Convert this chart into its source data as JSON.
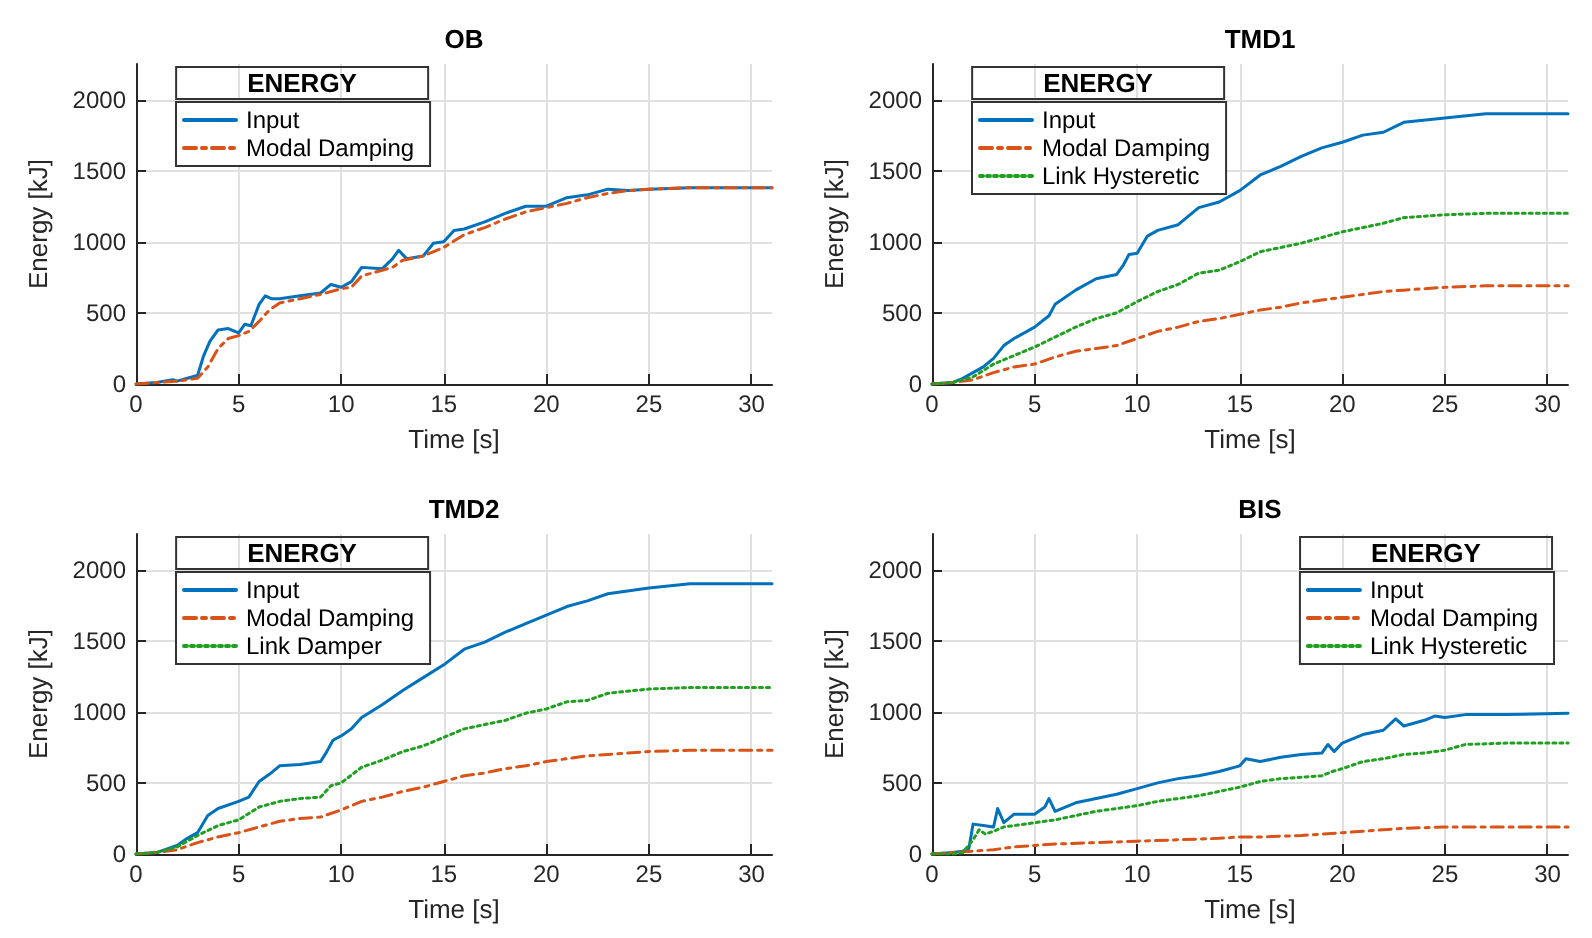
{
  "chart_data": [
    {
      "type": "line",
      "title": "OB",
      "xlabel": "Time [s]",
      "ylabel": "Energy [kJ]",
      "legend_title": "ENERGY",
      "legend": "top left",
      "grid": true,
      "marker": "none",
      "xlim": [
        0,
        31
      ],
      "xticks": [
        0,
        5,
        10,
        15,
        20,
        25,
        30
      ],
      "ylim": [
        0,
        2250
      ],
      "yticks": [
        0,
        500,
        1000,
        1500,
        2000
      ],
      "series": [
        {
          "name": "Input",
          "color": "#0072bd",
          "line_style": "solid",
          "x": [
            0,
            1,
            1.8,
            2,
            2.5,
            3,
            3.3,
            3.6,
            4,
            4.5,
            5,
            5.3,
            5.6,
            6,
            6.3,
            6.6,
            7,
            8,
            9,
            9.5,
            10,
            10.5,
            11,
            12,
            12.5,
            12.8,
            13.2,
            14,
            14.5,
            15,
            15.5,
            16,
            17,
            18,
            19,
            20,
            21,
            22,
            23,
            24,
            25,
            27,
            31
          ],
          "values": [
            0,
            10,
            30,
            20,
            40,
            60,
            200,
            300,
            380,
            390,
            360,
            420,
            410,
            560,
            620,
            600,
            600,
            620,
            640,
            700,
            680,
            720,
            820,
            810,
            880,
            940,
            880,
            900,
            990,
            1000,
            1080,
            1090,
            1140,
            1200,
            1250,
            1250,
            1310,
            1330,
            1370,
            1360,
            1370,
            1380,
            1380
          ]
        },
        {
          "name": "Modal Damping",
          "color": "#d95319",
          "line_style": "dashed",
          "x": [
            0,
            1,
            2,
            3,
            3.5,
            4,
            4.5,
            5,
            5.5,
            6,
            6.5,
            7,
            8,
            9,
            10,
            10.5,
            11,
            12,
            12.5,
            13,
            14,
            15,
            16,
            17,
            18,
            19,
            20,
            21,
            22,
            23,
            24,
            25,
            27,
            31
          ],
          "values": [
            0,
            10,
            20,
            40,
            120,
            250,
            320,
            340,
            370,
            440,
            520,
            570,
            600,
            630,
            670,
            680,
            760,
            800,
            820,
            870,
            900,
            960,
            1050,
            1100,
            1160,
            1210,
            1240,
            1270,
            1310,
            1340,
            1360,
            1370,
            1380,
            1380
          ]
        }
      ]
    },
    {
      "type": "line",
      "title": "TMD1",
      "xlabel": "Time [s]",
      "ylabel": "Energy [kJ]",
      "legend_title": "ENERGY",
      "legend": "top left",
      "grid": true,
      "marker": "none",
      "xlim": [
        0,
        31
      ],
      "xticks": [
        0,
        5,
        10,
        15,
        20,
        25,
        30
      ],
      "ylim": [
        0,
        2250
      ],
      "yticks": [
        0,
        500,
        1000,
        1500,
        2000
      ],
      "series": [
        {
          "name": "Input",
          "color": "#0072bd",
          "line_style": "solid",
          "x": [
            0,
            1,
            1.5,
            2,
            2.5,
            3,
            3.5,
            4,
            5,
            5.7,
            6,
            7,
            8,
            9,
            9.3,
            9.6,
            10,
            10.5,
            11,
            12,
            12.5,
            13,
            14,
            15,
            16,
            17,
            18,
            19,
            20,
            21,
            22,
            23,
            25,
            27,
            31
          ],
          "values": [
            0,
            10,
            40,
            80,
            120,
            180,
            270,
            320,
            400,
            480,
            560,
            660,
            740,
            770,
            830,
            910,
            920,
            1040,
            1080,
            1120,
            1180,
            1240,
            1280,
            1360,
            1470,
            1530,
            1600,
            1660,
            1700,
            1750,
            1770,
            1840,
            1870,
            1900,
            1900
          ]
        },
        {
          "name": "Modal Damping",
          "color": "#d95319",
          "line_style": "dashed",
          "x": [
            0,
            1,
            2,
            3,
            4,
            5,
            6,
            7,
            8,
            9,
            10,
            11,
            12,
            13,
            14,
            15,
            16,
            17,
            18,
            19,
            20,
            21,
            22,
            23,
            25,
            27,
            31
          ],
          "values": [
            0,
            10,
            30,
            80,
            120,
            140,
            190,
            230,
            250,
            270,
            320,
            370,
            400,
            440,
            460,
            490,
            520,
            540,
            570,
            590,
            610,
            630,
            650,
            660,
            680,
            690,
            690
          ]
        },
        {
          "name": "Link Hysteretic",
          "color": "#20a020",
          "line_style": "dotted",
          "x": [
            0,
            1,
            2,
            3,
            4,
            5,
            6,
            7,
            8,
            9,
            10,
            11,
            12,
            13,
            14,
            15,
            16,
            17,
            18,
            19,
            20,
            21,
            22,
            23,
            25,
            27,
            31
          ],
          "values": [
            0,
            10,
            50,
            140,
            200,
            260,
            330,
            400,
            460,
            500,
            580,
            650,
            700,
            780,
            800,
            860,
            930,
            960,
            990,
            1030,
            1070,
            1100,
            1130,
            1170,
            1190,
            1200,
            1200
          ]
        }
      ]
    },
    {
      "type": "line",
      "title": "TMD2",
      "xlabel": "Time [s]",
      "ylabel": "Energy [kJ]",
      "legend_title": "ENERGY",
      "legend": "top left",
      "grid": true,
      "marker": "none",
      "xlim": [
        0,
        31
      ],
      "xticks": [
        0,
        5,
        10,
        15,
        20,
        25,
        30
      ],
      "ylim": [
        0,
        2250
      ],
      "yticks": [
        0,
        500,
        1000,
        1500,
        2000
      ],
      "series": [
        {
          "name": "Input",
          "color": "#0072bd",
          "line_style": "solid",
          "x": [
            0,
            1,
            2,
            2.5,
            3,
            3.5,
            4,
            5,
            5.5,
            6,
            6.5,
            7,
            8,
            9,
            9.3,
            9.6,
            10,
            10.5,
            11,
            12,
            13,
            14,
            15,
            16,
            17,
            18,
            19,
            20,
            21,
            22,
            23,
            25,
            27,
            31
          ],
          "values": [
            0,
            10,
            60,
            110,
            150,
            270,
            320,
            370,
            400,
            510,
            560,
            620,
            630,
            650,
            720,
            800,
            830,
            880,
            960,
            1050,
            1150,
            1240,
            1330,
            1440,
            1490,
            1560,
            1620,
            1680,
            1740,
            1780,
            1830,
            1870,
            1900,
            1900
          ]
        },
        {
          "name": "Modal Damping",
          "color": "#d95319",
          "line_style": "dashed",
          "x": [
            0,
            1,
            2,
            3,
            4,
            5,
            6,
            7,
            8,
            9,
            10,
            11,
            12,
            13,
            14,
            15,
            16,
            17,
            18,
            19,
            20,
            21,
            22,
            23,
            25,
            27,
            31
          ],
          "values": [
            0,
            10,
            30,
            80,
            120,
            150,
            190,
            230,
            250,
            260,
            310,
            370,
            400,
            440,
            470,
            510,
            550,
            570,
            600,
            620,
            650,
            670,
            690,
            700,
            720,
            730,
            730
          ]
        },
        {
          "name": "Link Damper",
          "color": "#20a020",
          "line_style": "dotted",
          "x": [
            0,
            1,
            2,
            3,
            4,
            5,
            6,
            7,
            8,
            9,
            9.5,
            10,
            11,
            12,
            13,
            14,
            15,
            16,
            17,
            18,
            19,
            20,
            21,
            22,
            23,
            25,
            27,
            31
          ],
          "values": [
            0,
            10,
            50,
            130,
            200,
            240,
            330,
            370,
            390,
            400,
            480,
            500,
            610,
            660,
            720,
            760,
            820,
            880,
            910,
            940,
            990,
            1020,
            1070,
            1080,
            1130,
            1160,
            1170,
            1170
          ]
        }
      ]
    },
    {
      "type": "line",
      "title": "BIS",
      "xlabel": "Time [s]",
      "ylabel": "Energy [kJ]",
      "legend_title": "ENERGY",
      "legend": "top right",
      "grid": true,
      "marker": "none",
      "xlim": [
        0,
        31
      ],
      "xticks": [
        0,
        5,
        10,
        15,
        20,
        25,
        30
      ],
      "ylim": [
        0,
        2250
      ],
      "yticks": [
        0,
        500,
        1000,
        1500,
        2000
      ],
      "series": [
        {
          "name": "Input",
          "color": "#0072bd",
          "line_style": "solid",
          "x": [
            0,
            1,
            1.5,
            1.8,
            2,
            2.5,
            3,
            3.2,
            3.5,
            4,
            5,
            5.5,
            5.7,
            6,
            7,
            8,
            9,
            10,
            11,
            12,
            13,
            14,
            15,
            15.3,
            16,
            17,
            18,
            19,
            19.3,
            19.6,
            20,
            21,
            22,
            22.6,
            23,
            24,
            24.5,
            25,
            26,
            28,
            31
          ],
          "values": [
            0,
            10,
            20,
            40,
            210,
            200,
            190,
            320,
            220,
            280,
            280,
            330,
            390,
            300,
            360,
            390,
            420,
            460,
            500,
            530,
            550,
            580,
            620,
            670,
            650,
            680,
            700,
            710,
            770,
            720,
            780,
            840,
            870,
            950,
            900,
            940,
            970,
            960,
            980,
            980,
            990
          ]
        },
        {
          "name": "Modal Damping",
          "color": "#d95319",
          "line_style": "dashed",
          "x": [
            0,
            1,
            2,
            3,
            4,
            5,
            6,
            8,
            10,
            12,
            14,
            15,
            16,
            18,
            19,
            20,
            21,
            22,
            23,
            25,
            27,
            31
          ],
          "values": [
            0,
            10,
            20,
            30,
            50,
            60,
            70,
            80,
            90,
            100,
            110,
            120,
            120,
            130,
            140,
            150,
            160,
            170,
            180,
            190,
            190,
            190
          ]
        },
        {
          "name": "Link Hysteretic",
          "color": "#20a020",
          "line_style": "dotted",
          "x": [
            0,
            1,
            1.5,
            2,
            2.3,
            2.6,
            3,
            3.5,
            5,
            6,
            7,
            8,
            9,
            10,
            11,
            12,
            13,
            14,
            15,
            16,
            17,
            18,
            19,
            19.5,
            20,
            21,
            22,
            23,
            24,
            25,
            26,
            28,
            31
          ],
          "values": [
            0,
            0,
            10,
            100,
            170,
            140,
            160,
            190,
            220,
            240,
            270,
            300,
            320,
            340,
            370,
            390,
            410,
            440,
            470,
            510,
            530,
            540,
            550,
            580,
            600,
            650,
            670,
            700,
            710,
            730,
            770,
            780,
            780
          ]
        }
      ]
    }
  ]
}
